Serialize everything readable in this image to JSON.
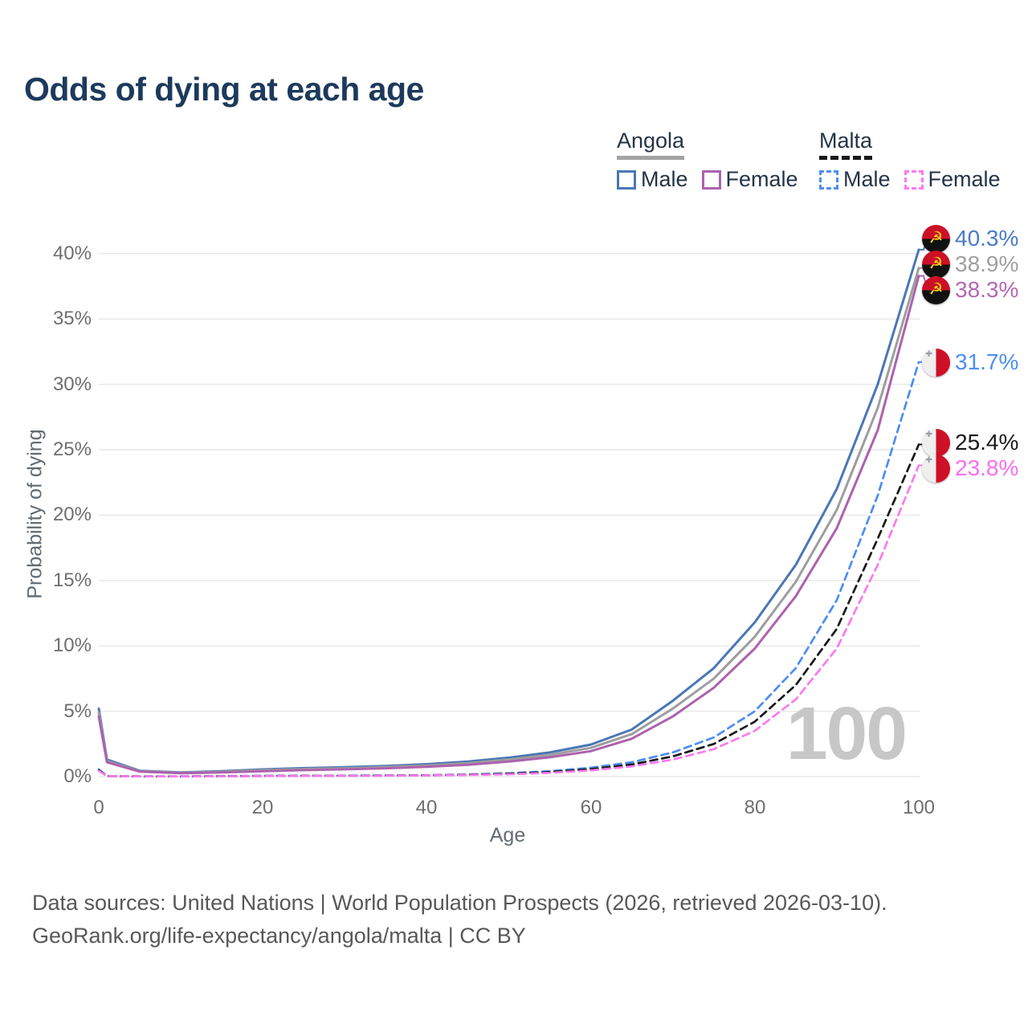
{
  "title": "Odds of dying at each age",
  "legend": {
    "groups": [
      {
        "name": "Angola",
        "line_style": "solid",
        "underline_color": "#a3a3a3",
        "items": [
          {
            "label": "Male",
            "color": "#4a77b4"
          },
          {
            "label": "Female",
            "color": "#ad62ad"
          }
        ]
      },
      {
        "name": "Malta",
        "line_style": "dashed",
        "underline_color": "#1a1a1a",
        "items": [
          {
            "label": "Male",
            "color": "#4d8df2"
          },
          {
            "label": "Female",
            "color": "#fb7af0"
          }
        ]
      }
    ]
  },
  "chart_data": {
    "type": "line",
    "xlabel": "Age",
    "ylabel": "Probability of dying",
    "x_ticks": [
      0,
      20,
      40,
      60,
      80,
      100
    ],
    "y_ticks": [
      "0%",
      "5%",
      "10%",
      "15%",
      "20%",
      "25%",
      "30%",
      "35%",
      "40%"
    ],
    "xlim": [
      0,
      100
    ],
    "ylim_percent": [
      0,
      40
    ],
    "grid": "horizontal",
    "age_indicator": "100",
    "x": [
      0,
      1,
      5,
      10,
      15,
      20,
      25,
      30,
      35,
      40,
      45,
      50,
      55,
      60,
      65,
      70,
      75,
      80,
      85,
      90,
      95,
      100
    ],
    "series": [
      {
        "id": "angola-male",
        "country": "Angola",
        "sex": "Male",
        "color": "#4a77b4",
        "label_color": "#4a7cc4",
        "dash": false,
        "flag": "angola-flag-icon",
        "end_label": "40.3%",
        "values": [
          5.2,
          1.3,
          0.45,
          0.32,
          0.42,
          0.55,
          0.65,
          0.72,
          0.82,
          0.95,
          1.15,
          1.45,
          1.85,
          2.45,
          3.6,
          5.8,
          8.3,
          11.8,
          16.2,
          22.0,
          30.0,
          40.3
        ]
      },
      {
        "id": "angola-both-sexes",
        "country": "Angola",
        "sex": "Both sexes",
        "color": "#9e9e9e",
        "label_color": "#a0a0a0",
        "dash": false,
        "flag": "angola-flag-icon",
        "end_label": "38.9%",
        "values": [
          4.9,
          1.2,
          0.42,
          0.29,
          0.37,
          0.49,
          0.58,
          0.64,
          0.73,
          0.85,
          1.03,
          1.3,
          1.66,
          2.2,
          3.25,
          5.2,
          7.5,
          10.7,
          14.9,
          20.4,
          28.2,
          38.9
        ]
      },
      {
        "id": "angola-female",
        "country": "Angola",
        "sex": "Female",
        "color": "#ad62ad",
        "label_color": "#b368b3",
        "dash": false,
        "flag": "angola-flag-icon",
        "end_label": "38.3%",
        "values": [
          4.6,
          1.1,
          0.38,
          0.26,
          0.32,
          0.42,
          0.5,
          0.56,
          0.64,
          0.75,
          0.9,
          1.15,
          1.48,
          1.95,
          2.9,
          4.6,
          6.8,
          9.8,
          13.8,
          19.0,
          26.5,
          38.3
        ]
      },
      {
        "id": "malta-male",
        "country": "Malta",
        "sex": "Male",
        "color": "#4d8df2",
        "label_color": "#4d8df2",
        "dash": true,
        "flag": "malta-flag-icon",
        "end_label": "31.7%",
        "values": [
          0.55,
          0.05,
          0.02,
          0.02,
          0.04,
          0.06,
          0.07,
          0.08,
          0.09,
          0.11,
          0.16,
          0.26,
          0.42,
          0.68,
          1.1,
          1.85,
          3.0,
          5.0,
          8.3,
          13.5,
          21.5,
          31.7
        ]
      },
      {
        "id": "malta-both-sexes",
        "country": "Malta",
        "sex": "Both sexes",
        "color": "#1a1a1a",
        "label_color": "#1a1a1a",
        "dash": true,
        "flag": "malta-flag-icon",
        "end_label": "25.4%",
        "values": [
          0.5,
          0.045,
          0.018,
          0.016,
          0.03,
          0.05,
          0.06,
          0.07,
          0.08,
          0.1,
          0.14,
          0.22,
          0.35,
          0.57,
          0.93,
          1.55,
          2.5,
          4.2,
          7.0,
          11.3,
          18.2,
          25.4
        ]
      },
      {
        "id": "malta-female",
        "country": "Malta",
        "sex": "Female",
        "color": "#fb7af0",
        "label_color": "#fb6ef2",
        "dash": true,
        "flag": "malta-flag-icon",
        "end_label": "23.8%",
        "values": [
          0.45,
          0.04,
          0.015,
          0.013,
          0.025,
          0.04,
          0.05,
          0.06,
          0.07,
          0.09,
          0.12,
          0.18,
          0.29,
          0.47,
          0.78,
          1.3,
          2.1,
          3.5,
          5.9,
          9.8,
          16.2,
          23.8
        ]
      }
    ]
  },
  "icons": {
    "angola_flag": "angola-flag-icon",
    "malta_flag": "malta-flag-icon"
  },
  "colors": {
    "title": "#1c3a5c",
    "grid": "#e7e7e7",
    "axis_text": "#6e6e6e",
    "watermark": "#c7c7c7"
  },
  "footer": {
    "line1": "Data sources: United Nations | World Population Prospects (2026, retrieved 2026-03-10).",
    "line2": "GeoRank.org/life-expectancy/angola/malta | CC BY"
  }
}
